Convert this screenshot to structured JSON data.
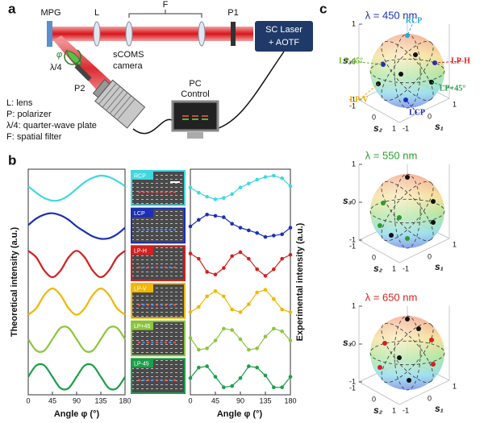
{
  "panel_labels": [
    "a",
    "b",
    "c"
  ],
  "setup": {
    "labels": {
      "mpg": "MPG",
      "lens": "L",
      "filter": "F",
      "p1": "P1",
      "laser": "SC Laser",
      "laser2": "+ AOTF",
      "phi": "φ",
      "qwp": "λ/4",
      "p2": "P2",
      "camera": "sCOMS",
      "camera2": "camera",
      "pc": "PC",
      "pc2": "Control"
    },
    "legend": [
      "L: lens",
      "P: polarizer",
      "λ/4: quarter-wave plate",
      "F: spatial filter"
    ]
  },
  "intensity": {
    "x": [
      0,
      15,
      30,
      45,
      60,
      75,
      90,
      105,
      120,
      135,
      150,
      165,
      180
    ],
    "xlim": [
      0,
      180
    ],
    "xticks": [
      0,
      45,
      90,
      135,
      180
    ],
    "ylim": [
      0,
      1
    ],
    "x_label": "Angle φ (°)",
    "theory_label": "Theoretical intensity (a.u.)",
    "experiment_label": "Experimental intensity (a.u.)",
    "series": [
      {
        "name": "RCP",
        "color": "#3fd8e0",
        "theory": [
          0.6,
          0.35,
          0.15,
          0.05,
          0.08,
          0.25,
          0.5,
          0.75,
          0.92,
          1,
          0.95,
          0.8,
          0.6
        ],
        "experiment": [
          0.55,
          0.35,
          0.2,
          0.1,
          0.15,
          0.3,
          0.55,
          0.7,
          0.85,
          0.95,
          1,
          0.9,
          0.6
        ]
      },
      {
        "name": "LCP",
        "color": "#1c2fb5",
        "theory": [
          0.55,
          0.8,
          0.95,
          1,
          0.92,
          0.75,
          0.5,
          0.3,
          0.12,
          0.03,
          0.05,
          0.2,
          0.45
        ],
        "experiment": [
          0.5,
          0.75,
          0.95,
          0.9,
          0.85,
          0.6,
          0.45,
          0.35,
          0.25,
          0.1,
          0.15,
          0.2,
          0.45
        ]
      },
      {
        "name": "LP-H",
        "color": "#d42020",
        "theory": [
          1,
          0.75,
          0.25,
          0,
          0.25,
          0.75,
          1,
          0.75,
          0.25,
          0,
          0.25,
          0.75,
          1
        ],
        "experiment": [
          0.9,
          0.7,
          0.2,
          0.1,
          0.35,
          0.8,
          0.95,
          0.7,
          0.3,
          0.05,
          0.3,
          0.7,
          0.85
        ]
      },
      {
        "name": "LP-V",
        "color": "#f0b800",
        "theory": [
          0,
          0.25,
          0.75,
          1,
          0.75,
          0.25,
          0,
          0.25,
          0.75,
          1,
          0.75,
          0.25,
          0
        ],
        "experiment": [
          0.1,
          0.3,
          0.7,
          0.9,
          0.7,
          0.2,
          0.1,
          0.4,
          0.85,
          0.95,
          0.6,
          0.2,
          0.1
        ]
      },
      {
        "name": "LP+45",
        "color": "#8cc63f",
        "theory": [
          0.5,
          0.07,
          0.07,
          0.5,
          0.93,
          0.93,
          0.5,
          0.07,
          0.07,
          0.5,
          0.93,
          0.93,
          0.5
        ],
        "experiment": [
          0.55,
          0.1,
          0.15,
          0.45,
          0.9,
          0.85,
          0.5,
          0.1,
          0.15,
          0.6,
          0.9,
          0.8,
          0.45
        ]
      },
      {
        "name": "LP-45",
        "color": "#1e9e4a",
        "theory": [
          0.5,
          0.93,
          0.93,
          0.5,
          0.07,
          0.07,
          0.5,
          0.93,
          0.93,
          0.5,
          0.07,
          0.07,
          0.5
        ],
        "experiment": [
          0.45,
          0.85,
          0.9,
          0.5,
          0.1,
          0.15,
          0.45,
          0.9,
          0.85,
          0.55,
          0.1,
          0.1,
          0.5
        ]
      }
    ]
  },
  "spheres": {
    "ticks": [
      -1,
      0,
      1
    ],
    "axis_labels": [
      "s₁",
      "s₂",
      "s₃"
    ],
    "plots": [
      {
        "title": "λ = 450 nm",
        "color": "#1c2fb5"
      },
      {
        "title": "λ = 550 nm",
        "color": "#2a9d2a"
      },
      {
        "title": "λ = 650 nm",
        "color": "#d42020"
      }
    ],
    "states": [
      {
        "label": "RCP",
        "color": "#29a8d8"
      },
      {
        "label": "LP-H",
        "color": "#d42020"
      },
      {
        "label": "LP-45°",
        "color": "#6ab82c"
      },
      {
        "label": "LP+45°",
        "color": "#2a9d4a"
      },
      {
        "label": "LCP",
        "color": "#1c2fb5"
      },
      {
        "label": "LP-V",
        "color": "#f0a800"
      }
    ]
  }
}
